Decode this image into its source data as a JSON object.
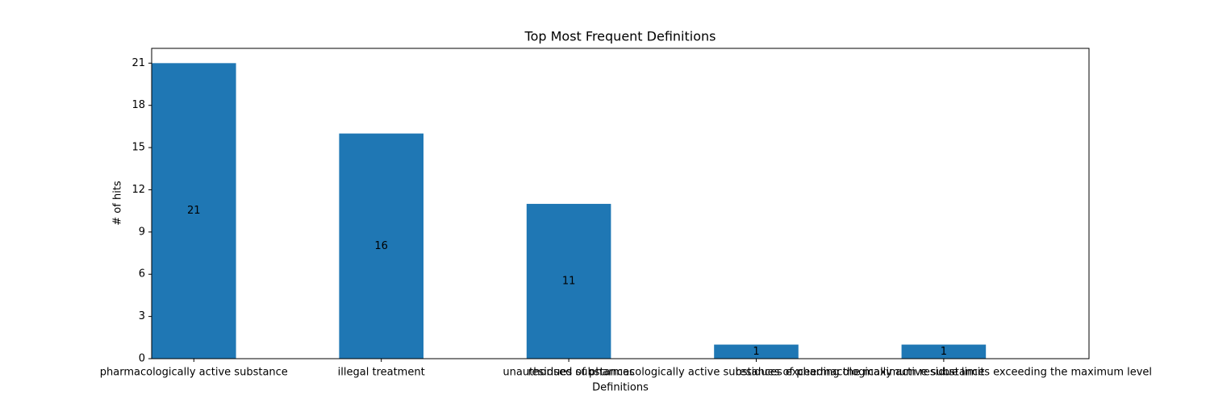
{
  "chart_data": {
    "type": "bar",
    "title": "Top Most Frequent Definitions",
    "xlabel": "Definitions",
    "ylabel": "# of hits",
    "categories": [
      "pharmacologically active substance",
      "illegal treatment",
      "unauthorised substances",
      "residues of pharmacologically active substances exceeding the maximum residue limit",
      "residues of pharmacologically active substances exceeding the maximum level"
    ],
    "values": [
      21,
      16,
      11,
      1,
      1
    ],
    "color": "#1f77b4",
    "ylim": [
      0,
      22.05
    ],
    "yticks": [
      0,
      3,
      6,
      9,
      12,
      15,
      18,
      21
    ],
    "grid": false
  }
}
